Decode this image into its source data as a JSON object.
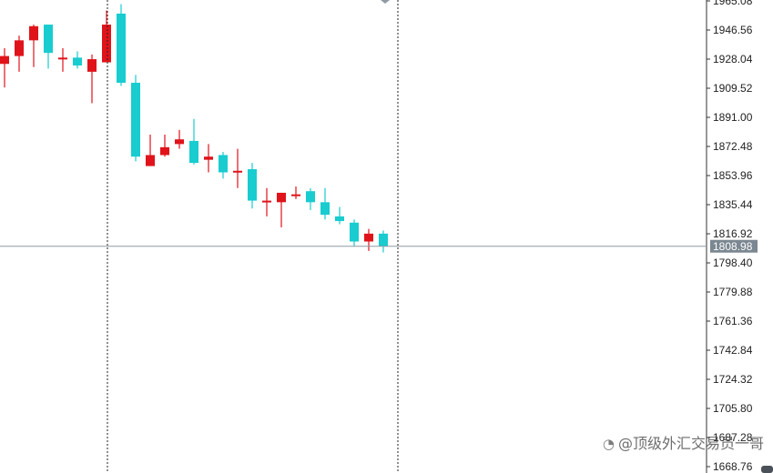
{
  "chart_data": {
    "type": "candlestick",
    "price_axis": {
      "ticks": [
        "1965.08",
        "1946.56",
        "1928.04",
        "1909.52",
        "1891.00",
        "1872.48",
        "1853.96",
        "1835.44",
        "1816.92",
        "1798.40",
        "1779.88",
        "1761.36",
        "1742.84",
        "1724.32",
        "1705.80",
        "1687.28",
        "1668.76"
      ],
      "ylim": [
        1668.76,
        1965.08
      ]
    },
    "current_price": {
      "label": "1808.98",
      "value": 1808.98
    },
    "candles": [
      {
        "open": 1925,
        "high": 1935,
        "low": 1910,
        "close": 1930
      },
      {
        "open": 1930,
        "high": 1943,
        "low": 1920,
        "close": 1940
      },
      {
        "open": 1940,
        "high": 1950,
        "low": 1923,
        "close": 1949
      },
      {
        "open": 1950,
        "high": 1950,
        "low": 1922,
        "close": 1932
      },
      {
        "open": 1929,
        "high": 1935,
        "low": 1920,
        "close": 1929
      },
      {
        "open": 1929,
        "high": 1933,
        "low": 1922,
        "close": 1924
      },
      {
        "open": 1920,
        "high": 1931,
        "low": 1900,
        "close": 1928
      },
      {
        "open": 1926,
        "high": 1959,
        "low": 1926,
        "close": 1950
      },
      {
        "open": 1957,
        "high": 1963,
        "low": 1911,
        "close": 1913
      },
      {
        "open": 1913,
        "high": 1918,
        "low": 1863,
        "close": 1866
      },
      {
        "open": 1860,
        "high": 1880,
        "low": 1860,
        "close": 1867
      },
      {
        "open": 1867,
        "high": 1880,
        "low": 1866,
        "close": 1872
      },
      {
        "open": 1874,
        "high": 1883,
        "low": 1871,
        "close": 1877
      },
      {
        "open": 1876,
        "high": 1890,
        "low": 1861,
        "close": 1862
      },
      {
        "open": 1864,
        "high": 1874,
        "low": 1856,
        "close": 1866
      },
      {
        "open": 1867,
        "high": 1869,
        "low": 1852,
        "close": 1856
      },
      {
        "open": 1856,
        "high": 1871,
        "low": 1846,
        "close": 1857
      },
      {
        "open": 1858,
        "high": 1862,
        "low": 1833,
        "close": 1838
      },
      {
        "open": 1837,
        "high": 1846,
        "low": 1828,
        "close": 1838
      },
      {
        "open": 1837,
        "high": 1843,
        "low": 1821,
        "close": 1843
      },
      {
        "open": 1842,
        "high": 1847,
        "low": 1839,
        "close": 1842
      },
      {
        "open": 1844,
        "high": 1846,
        "low": 1832,
        "close": 1837
      },
      {
        "open": 1837,
        "high": 1846,
        "low": 1826,
        "close": 1829
      },
      {
        "open": 1828,
        "high": 1834,
        "low": 1823,
        "close": 1825
      },
      {
        "open": 1824,
        "high": 1826,
        "low": 1809,
        "close": 1812
      },
      {
        "open": 1812,
        "high": 1820,
        "low": 1806,
        "close": 1817
      },
      {
        "open": 1817,
        "high": 1819,
        "low": 1805,
        "close": 1809
      }
    ],
    "colors": {
      "up": "#e0131a",
      "down": "#18ccd0",
      "grid_vline": "#222222",
      "bid_line": "#8e9aa4",
      "tag_bg": "#7b8791"
    }
  },
  "watermark": {
    "text": "@顶级外汇交易员一哥",
    "icon": "weibo-icon"
  }
}
